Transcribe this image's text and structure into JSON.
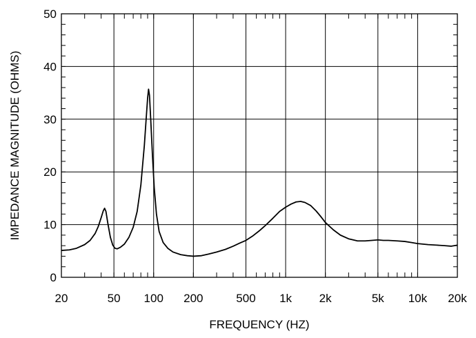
{
  "chart_data": {
    "type": "line",
    "xlabel": "FREQUENCY  (HZ)",
    "ylabel": "IMPEDANCE MAGNITUDE  (OHMS)",
    "x_scale": "log",
    "xlim": [
      20,
      20000
    ],
    "ylim": [
      0,
      50
    ],
    "grid": true,
    "x_ticks": [
      {
        "value": 20,
        "label": "20"
      },
      {
        "value": 50,
        "label": "50"
      },
      {
        "value": 100,
        "label": "100"
      },
      {
        "value": 200,
        "label": "200"
      },
      {
        "value": 500,
        "label": "500"
      },
      {
        "value": 1000,
        "label": "1k"
      },
      {
        "value": 2000,
        "label": "2k"
      },
      {
        "value": 5000,
        "label": "5k"
      },
      {
        "value": 10000,
        "label": "10k"
      },
      {
        "value": 20000,
        "label": "20k"
      }
    ],
    "y_ticks": [
      {
        "value": 0,
        "label": "0"
      },
      {
        "value": 10,
        "label": "10"
      },
      {
        "value": 20,
        "label": "20"
      },
      {
        "value": 30,
        "label": "30"
      },
      {
        "value": 40,
        "label": "40"
      },
      {
        "value": 50,
        "label": "50"
      }
    ],
    "series": [
      {
        "color": "#000000",
        "points": [
          [
            20,
            5.1
          ],
          [
            23,
            5.2
          ],
          [
            26,
            5.5
          ],
          [
            30,
            6.2
          ],
          [
            33,
            7.0
          ],
          [
            36,
            8.3
          ],
          [
            38,
            9.6
          ],
          [
            40,
            11.3
          ],
          [
            41.5,
            12.6
          ],
          [
            42.5,
            13.1
          ],
          [
            43.5,
            12.5
          ],
          [
            45,
            10.2
          ],
          [
            47,
            7.6
          ],
          [
            49,
            6.1
          ],
          [
            51,
            5.5
          ],
          [
            53,
            5.4
          ],
          [
            56,
            5.7
          ],
          [
            60,
            6.3
          ],
          [
            65,
            7.6
          ],
          [
            70,
            9.5
          ],
          [
            75,
            12.5
          ],
          [
            80,
            17.5
          ],
          [
            85,
            25.0
          ],
          [
            88,
            30.5
          ],
          [
            90,
            34.0
          ],
          [
            91.5,
            35.7
          ],
          [
            93,
            34.5
          ],
          [
            95,
            30.0
          ],
          [
            98,
            23.0
          ],
          [
            101,
            17.0
          ],
          [
            105,
            12.0
          ],
          [
            110,
            8.7
          ],
          [
            118,
            6.6
          ],
          [
            128,
            5.5
          ],
          [
            140,
            4.8
          ],
          [
            160,
            4.3
          ],
          [
            180,
            4.1
          ],
          [
            200,
            4.0
          ],
          [
            230,
            4.1
          ],
          [
            260,
            4.4
          ],
          [
            300,
            4.8
          ],
          [
            350,
            5.3
          ],
          [
            400,
            5.9
          ],
          [
            450,
            6.5
          ],
          [
            500,
            7.0
          ],
          [
            560,
            7.8
          ],
          [
            630,
            8.8
          ],
          [
            700,
            9.8
          ],
          [
            800,
            11.2
          ],
          [
            900,
            12.5
          ],
          [
            1000,
            13.3
          ],
          [
            1100,
            13.9
          ],
          [
            1200,
            14.3
          ],
          [
            1300,
            14.4
          ],
          [
            1400,
            14.2
          ],
          [
            1550,
            13.6
          ],
          [
            1700,
            12.6
          ],
          [
            1850,
            11.5
          ],
          [
            2000,
            10.4
          ],
          [
            2300,
            9.0
          ],
          [
            2600,
            8.0
          ],
          [
            3000,
            7.3
          ],
          [
            3500,
            6.9
          ],
          [
            4000,
            6.9
          ],
          [
            4500,
            7.0
          ],
          [
            5000,
            7.1
          ],
          [
            5500,
            7.0
          ],
          [
            6000,
            7.0
          ],
          [
            7000,
            6.9
          ],
          [
            8000,
            6.8
          ],
          [
            9000,
            6.6
          ],
          [
            10000,
            6.4
          ],
          [
            12000,
            6.2
          ],
          [
            14000,
            6.1
          ],
          [
            16000,
            6.0
          ],
          [
            18000,
            5.9
          ],
          [
            20000,
            6.1
          ]
        ]
      }
    ]
  }
}
